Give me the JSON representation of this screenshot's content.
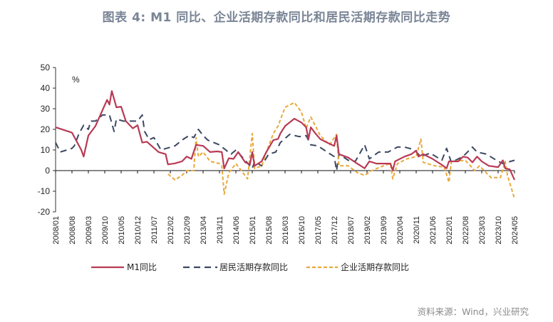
{
  "title": "图表 4:  M1 同比、企业活期存款同比和居民活期存款同比走势",
  "source": "资料来源：Wind，兴业研究",
  "chart_data": {
    "type": "line",
    "title": "图表 4:  M1 同比、企业活期存款同比和居民活期存款同比走势",
    "ylabel": "%",
    "xlabel": "",
    "ylim": [
      -20,
      50
    ],
    "yticks": [
      50,
      40,
      30,
      20,
      10,
      0,
      -10,
      -20
    ],
    "xlim": [
      "2008/01",
      "2024/05"
    ],
    "xticks": [
      "2008/01",
      "2008/08",
      "2009/03",
      "2009/10",
      "2010/05",
      "2010/12",
      "2011/07",
      "2012/02",
      "2012/09",
      "2013/04",
      "2013/11",
      "2014/06",
      "2015/01",
      "2015/08",
      "2016/03",
      "2016/10",
      "2017/05",
      "2017/12",
      "2018/07",
      "2019/02",
      "2019/09",
      "2020/04",
      "2020/11",
      "2021/06",
      "2022/01",
      "2022/08",
      "2023/03",
      "2023/10",
      "2024/05"
    ],
    "grid": false,
    "legend": "bottom",
    "series": [
      {
        "name": "M1同比",
        "style": "solid",
        "color": "#b83a55",
        "x": [
          "2008/01",
          "2008/08",
          "2008/12",
          "2009/01",
          "2009/03",
          "2009/06",
          "2009/10",
          "2009/11",
          "2009/12",
          "2010/01",
          "2010/03",
          "2010/05",
          "2010/07",
          "2010/10",
          "2010/12",
          "2011/02",
          "2011/04",
          "2011/06",
          "2011/09",
          "2011/12",
          "2012/01",
          "2012/04",
          "2012/07",
          "2012/09",
          "2012/11",
          "2013/01",
          "2013/04",
          "2013/07",
          "2013/10",
          "2013/12",
          "2014/01",
          "2014/03",
          "2014/05",
          "2014/07",
          "2014/10",
          "2014/12",
          "2015/01",
          "2015/02",
          "2015/05",
          "2015/07",
          "2015/10",
          "2015/12",
          "2016/01",
          "2016/03",
          "2016/07",
          "2016/10",
          "2016/12",
          "2017/01",
          "2017/02",
          "2017/04",
          "2017/06",
          "2017/09",
          "2017/12",
          "2018/01",
          "2018/02",
          "2018/06",
          "2018/09",
          "2019/01",
          "2019/03",
          "2019/06",
          "2019/09",
          "2019/12",
          "2020/01",
          "2020/02",
          "2020/06",
          "2020/09",
          "2020/11",
          "2020/12",
          "2021/02",
          "2021/06",
          "2021/10",
          "2021/12",
          "2022/01",
          "2022/05",
          "2022/07",
          "2022/09",
          "2022/11",
          "2023/01",
          "2023/03",
          "2023/06",
          "2023/10",
          "2023/12",
          "2024/01",
          "2024/03",
          "2024/05"
        ],
        "values": [
          21,
          18.4,
          10,
          6.8,
          17,
          21.6,
          31.8,
          34.3,
          32,
          38.6,
          30.7,
          31,
          24,
          20.5,
          22,
          13.6,
          14,
          12,
          9,
          8,
          3,
          3.5,
          4.5,
          6.8,
          5.7,
          12.5,
          12,
          9,
          9.3,
          9,
          1,
          6,
          5.7,
          9,
          4,
          3,
          9,
          2.3,
          4.5,
          9,
          14.8,
          15.3,
          18,
          21.6,
          25.2,
          23.3,
          21,
          15.3,
          21,
          18,
          15.3,
          13.6,
          12,
          17,
          8,
          6.3,
          4,
          1.1,
          4.5,
          3.4,
          3.4,
          3.4,
          0,
          4.5,
          6.8,
          8,
          9.7,
          6.8,
          8,
          5.7,
          2.8,
          1.1,
          4.5,
          4.5,
          6.8,
          6.3,
          4,
          6.8,
          4.5,
          2.3,
          1.7,
          5,
          1.1,
          0.6,
          -4.5
        ]
      },
      {
        "name": "居民活期存款同比",
        "style": "dashed",
        "color": "#3c4862",
        "x": [
          "2008/01",
          "2008/03",
          "2008/08",
          "2008/09",
          "2008/11",
          "2009/01",
          "2009/03",
          "2009/04",
          "2009/06",
          "2009/09",
          "2009/12",
          "2010/02",
          "2010/03",
          "2010/06",
          "2010/09",
          "2010/12",
          "2011/02",
          "2011/03",
          "2011/05",
          "2011/07",
          "2011/10",
          "2012/01",
          "2012/04",
          "2012/07",
          "2012/10",
          "2012/12",
          "2013/02",
          "2013/04",
          "2013/06",
          "2013/11",
          "2014/02",
          "2014/04",
          "2014/06",
          "2014/10",
          "2015/01",
          "2015/02",
          "2015/05",
          "2015/08",
          "2015/11",
          "2016/01",
          "2016/05",
          "2016/09",
          "2016/12",
          "2017/02",
          "2017/05",
          "2017/09",
          "2017/12",
          "2018/01",
          "2018/02",
          "2018/06",
          "2018/09",
          "2019/01",
          "2019/03",
          "2019/07",
          "2019/11",
          "2020/03",
          "2020/06",
          "2020/10",
          "2021/01",
          "2021/05",
          "2021/10",
          "2021/12",
          "2022/02",
          "2022/07",
          "2022/11",
          "2023/01",
          "2023/05",
          "2023/10",
          "2023/12",
          "2024/05"
        ],
        "values": [
          13.6,
          9,
          10.8,
          12,
          18,
          22,
          20,
          24,
          24,
          27,
          27,
          19,
          25,
          24,
          24,
          24,
          27,
          19,
          15,
          16,
          10,
          11,
          12,
          14.8,
          17,
          16,
          20,
          17,
          14.8,
          12.5,
          9.7,
          8,
          10,
          5,
          1,
          4.5,
          2.3,
          8,
          9,
          13.6,
          17.6,
          16.5,
          17,
          12.5,
          12,
          9,
          6.8,
          0,
          8,
          5,
          4.5,
          12.5,
          5.7,
          9,
          9,
          11.4,
          11.4,
          10.2,
          6.8,
          8.5,
          5,
          10.8,
          4,
          6.8,
          11.4,
          9,
          8,
          4.5,
          3.4,
          5
        ]
      },
      {
        "name": "企业活期存款同比",
        "style": "dashed",
        "color": "#e9a93a",
        "x": [
          "2012/01",
          "2012/04",
          "2012/07",
          "2012/09",
          "2012/12",
          "2013/01",
          "2013/02",
          "2013/04",
          "2013/07",
          "2013/11",
          "2013/12",
          "2014/01",
          "2014/03",
          "2014/06",
          "2014/11",
          "2015/01",
          "2015/02",
          "2015/05",
          "2015/07",
          "2015/10",
          "2015/12",
          "2016/03",
          "2016/07",
          "2016/10",
          "2016/12",
          "2017/02",
          "2017/04",
          "2017/06",
          "2017/10",
          "2018/01",
          "2018/02",
          "2018/06",
          "2018/10",
          "2019/01",
          "2019/04",
          "2019/09",
          "2019/12",
          "2020/01",
          "2020/03",
          "2020/07",
          "2020/11",
          "2021/01",
          "2021/02",
          "2021/07",
          "2021/11",
          "2022/01",
          "2022/02",
          "2022/08",
          "2022/12",
          "2023/02",
          "2023/07",
          "2023/11",
          "2024/01",
          "2024/02",
          "2024/05"
        ],
        "values": [
          -1.7,
          -4.5,
          -2.3,
          0,
          0,
          16,
          6.8,
          9,
          4.5,
          3.4,
          2.3,
          -11.4,
          -1.1,
          3.4,
          -4,
          18,
          1,
          2.3,
          9,
          18,
          21.6,
          30.7,
          33,
          28.4,
          20.5,
          26,
          21.6,
          17,
          12.5,
          17.6,
          2.3,
          2.3,
          -1.1,
          -2.3,
          0,
          2.3,
          3.4,
          -4,
          3.4,
          5.7,
          6.8,
          15.3,
          4,
          2.3,
          1.7,
          -5.7,
          4.5,
          5,
          0,
          2.3,
          -3.4,
          -3.4,
          4.5,
          -2.3,
          -13.6
        ]
      }
    ]
  }
}
